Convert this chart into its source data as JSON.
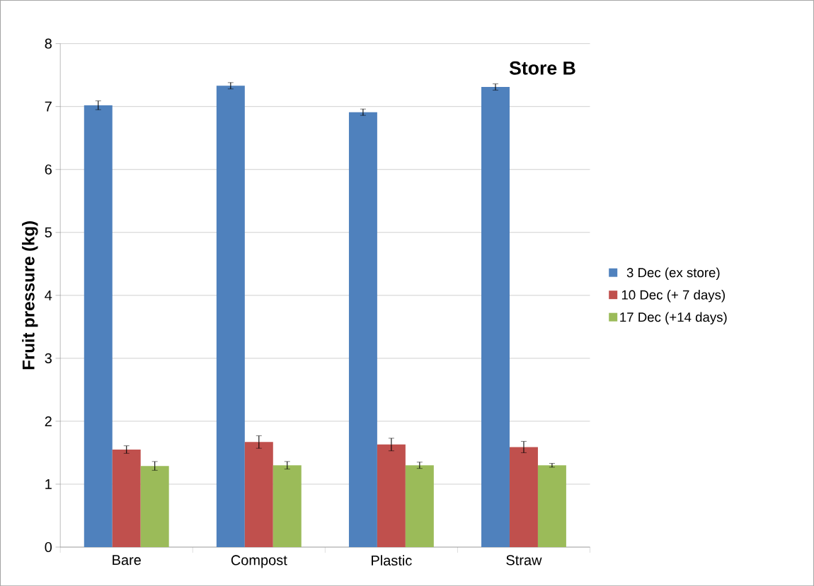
{
  "chart_data": {
    "type": "bar",
    "title": "Store B",
    "ylabel": "Fruit pressure (kg)",
    "categories": [
      "Bare",
      "Compost",
      "Plastic",
      "Straw"
    ],
    "series": [
      {
        "name": "3 Dec (ex store)",
        "color": "#4f81bd",
        "values": [
          7.02,
          7.33,
          6.91,
          7.31
        ],
        "errors": [
          0.07,
          0.05,
          0.05,
          0.05
        ]
      },
      {
        "name": "10 Dec (+ 7 days)",
        "color": "#c0504d",
        "values": [
          1.55,
          1.67,
          1.63,
          1.59
        ],
        "errors": [
          0.06,
          0.1,
          0.1,
          0.09
        ]
      },
      {
        "name": "17 Dec (+14 days)",
        "color": "#9bbb59",
        "values": [
          1.29,
          1.3,
          1.3,
          1.3
        ],
        "errors": [
          0.07,
          0.06,
          0.05,
          0.03
        ]
      }
    ],
    "ylim": [
      0,
      8
    ],
    "yticks": [
      0,
      1,
      2,
      3,
      4,
      5,
      6,
      7,
      8
    ],
    "grid": "y",
    "legend": "right"
  }
}
